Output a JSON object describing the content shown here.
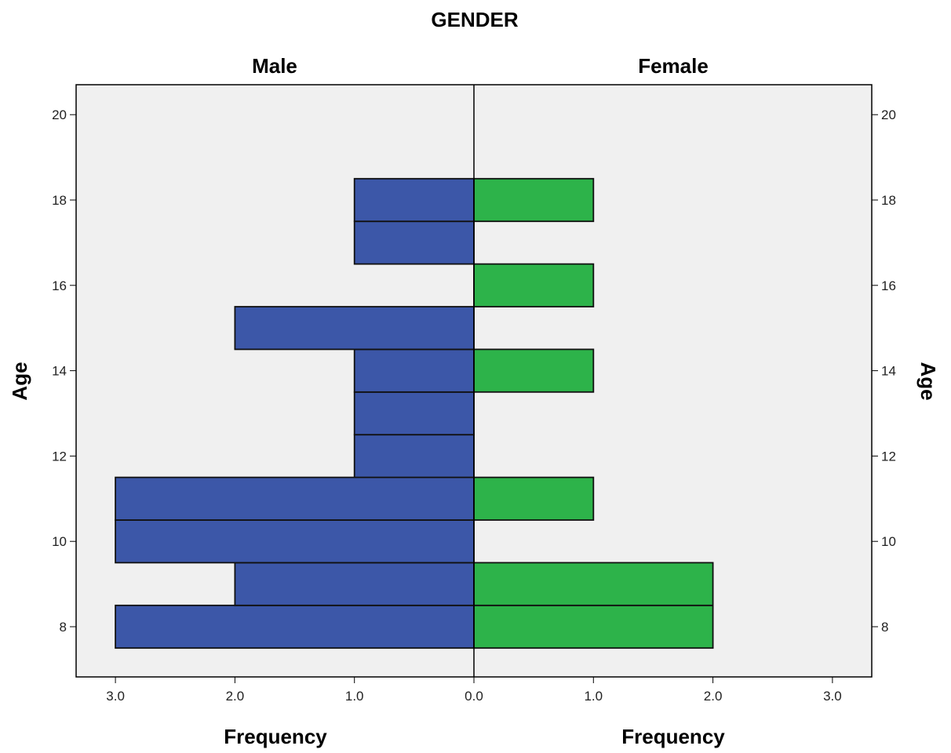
{
  "chart_data": {
    "type": "bar",
    "orientation": "horizontal",
    "subtype": "population-pyramid",
    "title": "GENDER",
    "y_label_left": "Age",
    "y_label_right": "Age",
    "x_label_left": "Frequency",
    "x_label_right": "Frequency",
    "ylim": [
      7,
      20.7
    ],
    "y_ticks": [
      8,
      10,
      12,
      14,
      16,
      18,
      20
    ],
    "xlim": [
      0,
      3.3
    ],
    "x_ticks": [
      3.0,
      2.0,
      1.0,
      0.0,
      1.0,
      2.0,
      3.0
    ],
    "x_tick_values": [
      -3,
      -2,
      -1,
      0,
      1,
      2,
      3
    ],
    "bin_width": 1,
    "grid": false,
    "series": [
      {
        "name": "Male",
        "side": "left",
        "color": "#3c57a8",
        "ages": [
          8,
          9,
          10,
          11,
          12,
          13,
          14,
          15,
          17,
          18
        ],
        "values": [
          3,
          2,
          3,
          3,
          1,
          1,
          1,
          2,
          1,
          1
        ]
      },
      {
        "name": "Female",
        "side": "right",
        "color": "#2db34a",
        "ages": [
          8,
          9,
          11,
          14,
          16,
          18
        ],
        "values": [
          2,
          2,
          1,
          1,
          1,
          1
        ]
      }
    ]
  }
}
